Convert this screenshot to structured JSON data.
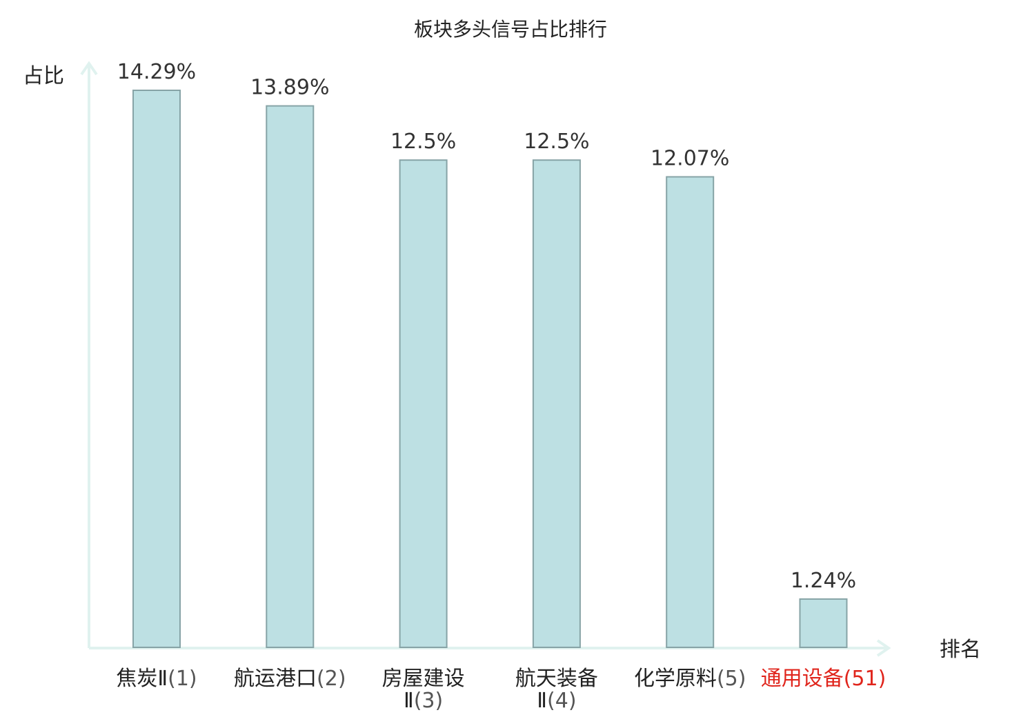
{
  "chart_data": {
    "type": "bar",
    "title": "板块多头信号占比排行",
    "xlabel": "排名",
    "ylabel": "占比",
    "value_suffix": "%",
    "ylim": [
      0,
      14.29
    ],
    "grid": false,
    "legend": "none",
    "categories": [
      {
        "name_lines": [
          "焦炭Ⅱ"
        ],
        "rank": "(1)",
        "value": 14.29,
        "label": "14.29%",
        "highlight": false
      },
      {
        "name_lines": [
          "航运港口"
        ],
        "rank": "(2)",
        "value": 13.89,
        "label": "13.89%",
        "highlight": false
      },
      {
        "name_lines": [
          "房屋建设",
          "Ⅱ"
        ],
        "rank": "(3)",
        "value": 12.5,
        "label": "12.5%",
        "highlight": false
      },
      {
        "name_lines": [
          "航天装备",
          "Ⅱ"
        ],
        "rank": "(4)",
        "value": 12.5,
        "label": "12.5%",
        "highlight": false
      },
      {
        "name_lines": [
          "化学原料"
        ],
        "rank": "(5)",
        "value": 12.07,
        "label": "12.07%",
        "highlight": false
      },
      {
        "name_lines": [
          "通用设备"
        ],
        "rank": "(51)",
        "value": 1.24,
        "label": "1.24%",
        "highlight": true
      }
    ]
  },
  "colors": {
    "bar_fill": "#bde0e3",
    "bar_stroke": "#86a3a6",
    "axis": "#e0f2ef",
    "highlight_text": "#e0251c"
  }
}
